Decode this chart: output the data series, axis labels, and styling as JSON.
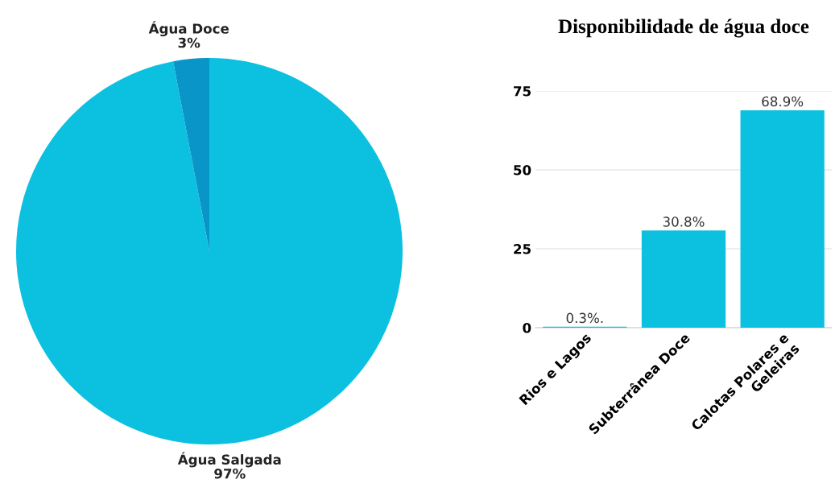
{
  "chart_data": [
    {
      "type": "pie",
      "categories": [
        "Água Salgada",
        "Água Doce"
      ],
      "values": [
        97,
        3
      ],
      "colors": [
        "#0cc0e0",
        "#0a95c9"
      ],
      "value_labels": [
        "97%",
        "3%"
      ]
    },
    {
      "type": "bar",
      "title": "Disponibilidade de água doce",
      "categories": [
        "Rios e Lagos",
        "Subterrânea Doce",
        "Calotas Polares e\nGeleiras"
      ],
      "values": [
        0.3,
        30.8,
        68.9
      ],
      "color": "#0cc0e0",
      "value_labels": [
        "0.3%.",
        "30.8%",
        "68.9%"
      ],
      "ylim": [
        0,
        75
      ],
      "yticks": [
        0,
        25,
        50,
        75
      ],
      "grid": "y"
    }
  ]
}
